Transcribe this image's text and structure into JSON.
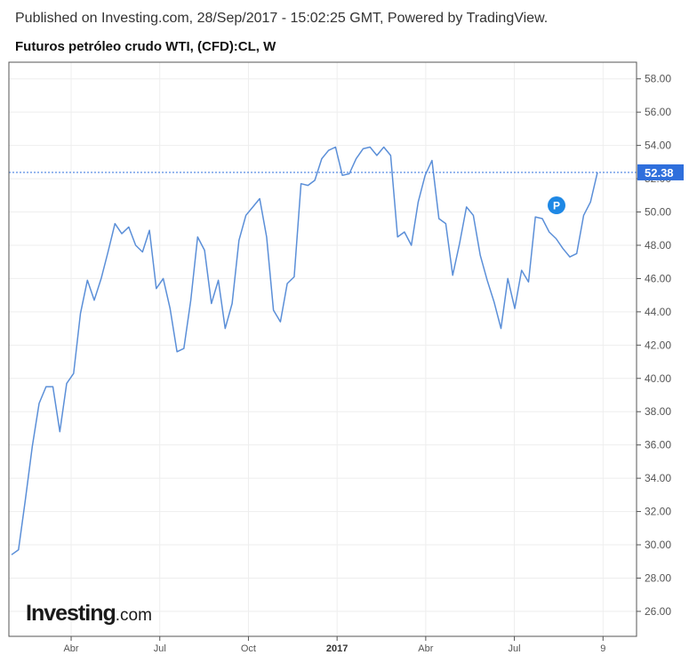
{
  "header": {
    "published": "Published on Investing.com, 28/Sep/2017 - 15:02:25 GMT, Powered by TradingView.",
    "title": "Futuros petróleo crudo WTI, (CFD):CL, W"
  },
  "logo": {
    "brand": "Investing",
    "domain": ".com"
  },
  "colors": {
    "line": "#5b8fd8",
    "price_line": "#2f6fdc",
    "price_label_bg": "#2f6fdc",
    "marker_bg": "#1e88e5",
    "grid": "#eeeeee",
    "frame": "#555555"
  },
  "marker": {
    "text": "P",
    "x": 87.5,
    "y": 50.4
  },
  "chart_data": {
    "type": "line",
    "title": "Futuros petróleo crudo WTI, (CFD):CL, W",
    "xlabel": "",
    "ylabel": "",
    "ylim": [
      24.5,
      59.0
    ],
    "xlim": [
      0,
      101
    ],
    "grid": true,
    "y_ticks": [
      "26.00",
      "28.00",
      "30.00",
      "32.00",
      "34.00",
      "36.00",
      "38.00",
      "40.00",
      "42.00",
      "44.00",
      "46.00",
      "48.00",
      "50.00",
      "52.00",
      "54.00",
      "56.00",
      "58.00"
    ],
    "x_ticks": [
      {
        "label": "Abr",
        "x": 9,
        "bold": false
      },
      {
        "label": "Jul",
        "x": 22,
        "bold": false
      },
      {
        "label": "Oct",
        "x": 35,
        "bold": false
      },
      {
        "label": "2017",
        "x": 48,
        "bold": true
      },
      {
        "label": "Abr",
        "x": 61,
        "bold": false
      },
      {
        "label": "Jul",
        "x": 74,
        "bold": false
      },
      {
        "label": "9",
        "x": 87,
        "bold": false
      }
    ],
    "last_price": {
      "value": 52.38,
      "label": "52.38"
    },
    "series": [
      {
        "values": [
          29.4,
          29.7,
          32.7,
          35.9,
          38.5,
          39.5,
          39.5,
          36.8,
          39.7,
          40.3,
          43.9,
          45.9,
          44.7,
          46.0,
          47.6,
          49.3,
          48.7,
          49.1,
          48.0,
          47.6,
          48.9,
          45.4,
          46.0,
          44.2,
          41.6,
          41.8,
          44.7,
          48.5,
          47.7,
          44.5,
          45.9,
          43.0,
          44.5,
          48.3,
          49.8,
          50.3,
          50.8,
          48.5,
          44.1,
          43.4,
          45.7,
          46.1,
          51.7,
          51.6,
          51.9,
          53.2,
          53.7,
          53.9,
          52.2,
          52.3,
          53.2,
          53.8,
          53.9,
          53.4,
          53.9,
          53.4,
          48.5,
          48.8,
          48.0,
          50.6,
          52.2,
          53.1,
          49.6,
          49.3,
          46.2,
          48.1,
          50.3,
          49.8,
          47.4,
          45.9,
          44.6,
          43.0,
          46.0,
          44.2,
          46.5,
          45.8,
          49.7,
          49.6,
          48.8,
          48.4,
          47.8,
          47.3,
          47.5,
          49.8,
          50.6,
          52.38
        ]
      }
    ]
  }
}
